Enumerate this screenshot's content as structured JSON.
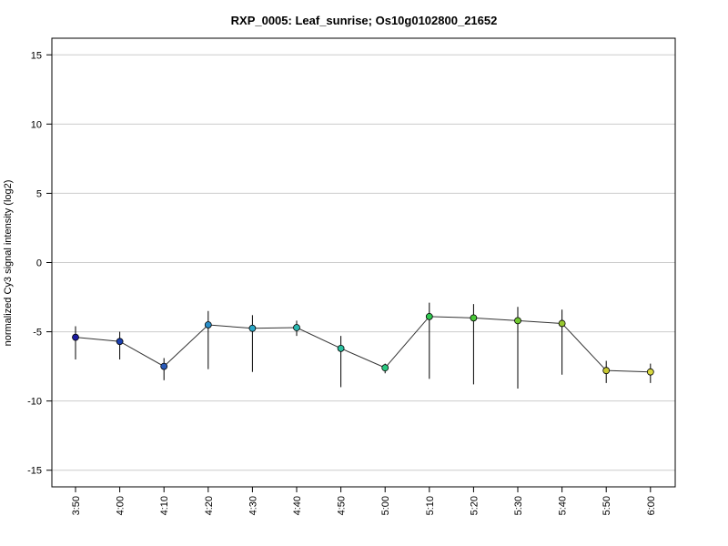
{
  "chart_data": {
    "type": "line",
    "title": "RXP_0005: Leaf_sunrise; Os10g0102800_21652",
    "xlabel": "",
    "ylabel": "normalized Cy3 signal intensity (log2)",
    "categories": [
      "3:50",
      "4:00",
      "4:10",
      "4:20",
      "4:30",
      "4:40",
      "4:50",
      "5:00",
      "5:10",
      "5:20",
      "5:30",
      "5:40",
      "5:50",
      "6:00"
    ],
    "series": [
      {
        "values": [
          -5.4,
          -5.7,
          -7.5,
          -4.5,
          -4.75,
          -4.7,
          -6.2,
          -7.6,
          -3.9,
          -4.0,
          -4.2,
          -4.4,
          -7.8,
          -7.9
        ],
        "error_high": [
          -4.6,
          -5.0,
          -6.9,
          -3.5,
          -3.8,
          -4.2,
          -5.3,
          -7.3,
          -2.9,
          -3.0,
          -3.2,
          -3.4,
          -7.1,
          -7.3
        ],
        "error_low": [
          -7.0,
          -7.0,
          -8.5,
          -7.7,
          -7.9,
          -5.3,
          -9.0,
          -8.0,
          -8.4,
          -8.8,
          -9.1,
          -8.1,
          -8.7,
          -8.7
        ],
        "point_colors": [
          "#1a1a9e",
          "#1a3fae",
          "#2a5ab8",
          "#2a8ec8",
          "#2aa8c8",
          "#2ab8b0",
          "#2ac0a0",
          "#2ac880",
          "#30c850",
          "#48c838",
          "#70c830",
          "#98c830",
          "#c8c830",
          "#d8d840"
        ]
      }
    ],
    "yticks": [
      -15,
      -10,
      -5,
      0,
      5,
      10,
      15
    ],
    "ylim": [
      -16.2,
      16.2
    ],
    "grid": "horizontal",
    "colors": {
      "line": "#333333",
      "grid": "#cccccc",
      "error_bar": "#000000"
    }
  }
}
